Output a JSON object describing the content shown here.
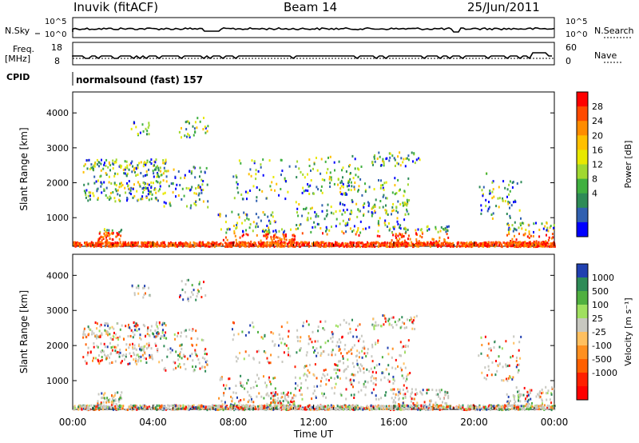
{
  "header": {
    "left": "Inuvik (fitACF)",
    "center": "Beam 14",
    "right": "25/Jun/2011"
  },
  "panels": {
    "nsky": {
      "left_label": "N.Sky",
      "right_label": "N.Search",
      "ticks_left": [
        "10^5",
        "10^0"
      ],
      "ticks_right": [
        "10^5",
        "10^0"
      ]
    },
    "freq": {
      "left_label_1": "Freq.",
      "left_label_2": "[MHz]",
      "right_label": "Nave",
      "ticks_left": [
        "18",
        "8"
      ],
      "ticks_right": [
        "60",
        "0"
      ]
    },
    "cpid": {
      "left_label": "CPID",
      "program": "normalsound (fast) 157"
    }
  },
  "chart_data": [
    {
      "type": "heatmap",
      "name": "power",
      "ylabel": "Slant Range [km]",
      "y_ticks": [
        "4000",
        "3000",
        "2000",
        "1000"
      ],
      "y_tick_values": [
        4000,
        3000,
        2000,
        1000
      ],
      "ylim": [
        180,
        4600
      ],
      "colorbar": {
        "title": "Power [dB]",
        "ticks": [
          "28",
          "24",
          "20",
          "16",
          "12",
          "8",
          "4"
        ],
        "colors": [
          "#ff0000",
          "#ff4a00",
          "#ff8c00",
          "#ffc000",
          "#e8e800",
          "#a0d830",
          "#40b040",
          "#2e8b57",
          "#3060b0",
          "#0000ff"
        ]
      }
    },
    {
      "type": "heatmap",
      "name": "velocity",
      "ylabel": "Slant Range [km]",
      "y_ticks": [
        "4000",
        "3000",
        "2000",
        "1000"
      ],
      "y_tick_values": [
        4000,
        3000,
        2000,
        1000
      ],
      "ylim": [
        180,
        4600
      ],
      "colorbar": {
        "title": "Velocity [m s⁻¹]",
        "ticks": [
          "1000",
          "500",
          "100",
          "25",
          "-25",
          "-100",
          "-500",
          "-1000"
        ],
        "colors": [
          "#2040b0",
          "#2e8b57",
          "#50b040",
          "#a0e060",
          "#c8c8c0",
          "#ffc060",
          "#ff9020",
          "#ff6000",
          "#ff2000",
          "#ff0000"
        ]
      }
    }
  ],
  "xaxis": {
    "label": "Time UT",
    "ticks": [
      "00:00",
      "04:00",
      "08:00",
      "12:00",
      "16:00",
      "20:00",
      "00:00"
    ]
  }
}
